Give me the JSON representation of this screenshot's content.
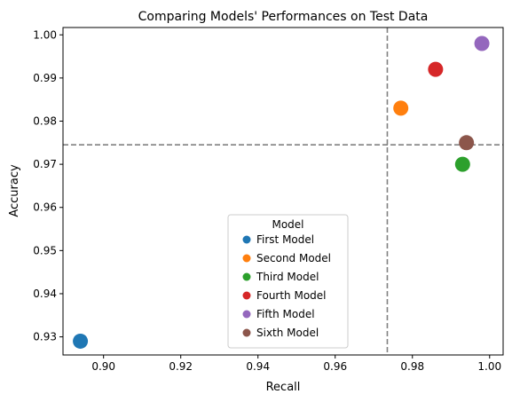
{
  "chart_data": {
    "type": "scatter",
    "title": "Comparing Models' Performances on Test Data",
    "xlabel": "Recall",
    "ylabel": "Accuracy",
    "xlim": [
      0.8895,
      1.0035
    ],
    "ylim": [
      0.9258,
      1.0017
    ],
    "xticks": [
      0.9,
      0.92,
      0.94,
      0.96,
      0.98,
      1.0
    ],
    "xtick_labels": [
      "0.90",
      "0.92",
      "0.94",
      "0.96",
      "0.98",
      "1.00"
    ],
    "yticks": [
      0.93,
      0.94,
      0.95,
      0.96,
      0.97,
      0.98,
      0.99,
      1.0
    ],
    "ytick_labels": [
      "0.93",
      "0.94",
      "0.95",
      "0.96",
      "0.97",
      "0.98",
      "0.99",
      "1.00"
    ],
    "grid": false,
    "legend": {
      "title": "Model",
      "placement": "lower-center"
    },
    "reference_lines": {
      "vertical_x": 0.9735,
      "horizontal_y": 0.9745,
      "style": "dashed",
      "color": "#808080"
    },
    "series": [
      {
        "name": "First Model",
        "x": 0.894,
        "y": 0.929,
        "color": "#1f77b4"
      },
      {
        "name": "Second Model",
        "x": 0.977,
        "y": 0.983,
        "color": "#ff7f0e"
      },
      {
        "name": "Third Model",
        "x": 0.993,
        "y": 0.97,
        "color": "#2ca02c"
      },
      {
        "name": "Fourth Model",
        "x": 0.986,
        "y": 0.992,
        "color": "#d62728"
      },
      {
        "name": "Fifth Model",
        "x": 0.998,
        "y": 0.998,
        "color": "#9467bd"
      },
      {
        "name": "Sixth Model",
        "x": 0.994,
        "y": 0.975,
        "color": "#8c564b"
      }
    ]
  }
}
